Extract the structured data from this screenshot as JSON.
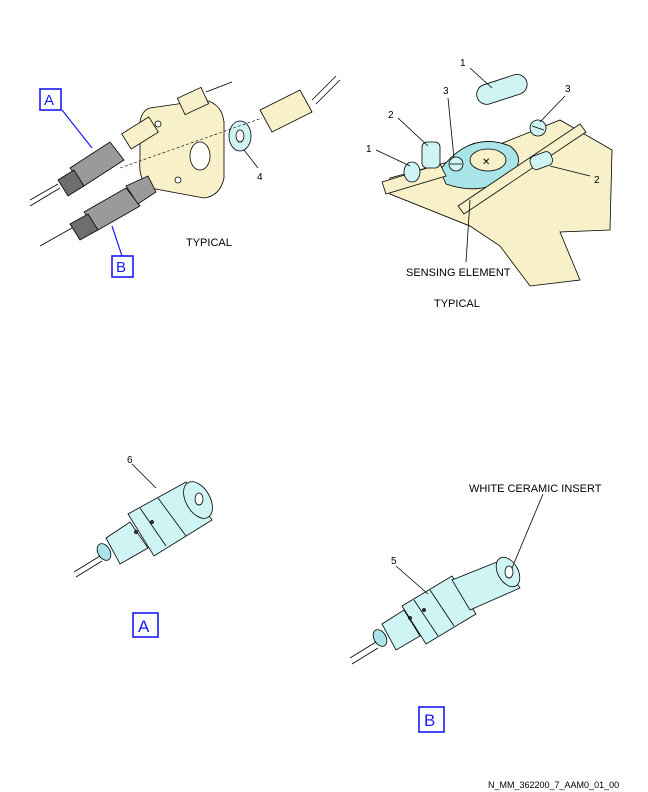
{
  "views": {
    "top_left": {
      "caption": "TYPICAL",
      "callout_a": "A",
      "callout_b": "B",
      "item_4": "4"
    },
    "top_right": {
      "caption": "TYPICAL",
      "sensing_element": "SENSING ELEMENT",
      "items": [
        "1",
        "1",
        "2",
        "2",
        "3",
        "3"
      ]
    },
    "detail_a": {
      "label": "A",
      "item": "6"
    },
    "detail_b": {
      "label": "B",
      "item": "5",
      "insert_label": "WHITE CERAMIC INSERT"
    }
  },
  "figure_id": "N_MM_362200_7_AAM0_01_00",
  "colors": {
    "callout_blue": "#1a1aff",
    "bracket_cream": "#f8f0c8",
    "fitting_cyan": "#cff4f4",
    "sensor_grey": "#9a9a9a"
  }
}
